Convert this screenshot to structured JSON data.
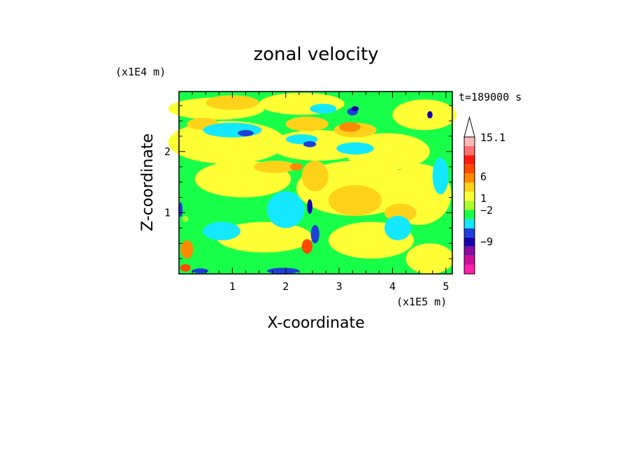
{
  "chart_data": {
    "type": "heatmap",
    "title": "zonal velocity",
    "xlabel": "X-coordinate",
    "ylabel": "Z-coordinate",
    "x_unit": "(x1E5 m)",
    "y_unit": "(x1E4 m)",
    "time_label": "t=189000 s",
    "xlim": [
      0,
      5.12
    ],
    "ylim": [
      0,
      2.98
    ],
    "x_ticks": [
      "1",
      "2",
      "3",
      "4",
      "5"
    ],
    "x_tick_values": [
      1,
      2,
      3,
      4,
      5
    ],
    "y_ticks": [
      "1",
      "2"
    ],
    "y_tick_values": [
      1,
      2
    ],
    "colorbar": {
      "colors": [
        "#ff1fae",
        "#cc0f9f",
        "#8a0ea0",
        "#1700ad",
        "#1d3fd8",
        "#13e8ff",
        "#18ff4a",
        "#a8ff2e",
        "#ffff35",
        "#ffd21a",
        "#ff8a00",
        "#ff4a00",
        "#ff1a10",
        "#ff7070",
        "#ffb8b8"
      ],
      "tick_labels": [
        "15.1",
        "6",
        "1",
        "−2",
        "−9"
      ],
      "tick_values": [
        15.1,
        6,
        1,
        -2,
        -9
      ],
      "extend": "max"
    }
  }
}
